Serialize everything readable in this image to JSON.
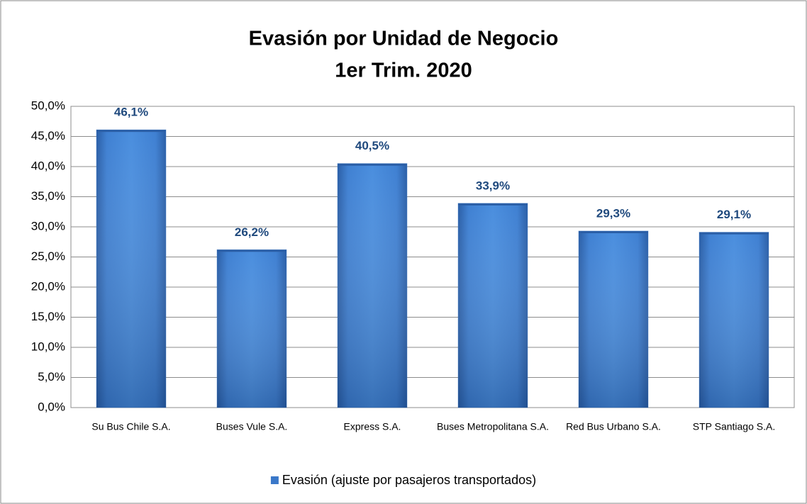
{
  "chart_data": {
    "type": "bar",
    "title": "Evasión por Unidad de Negocio",
    "subtitle": "1er Trim. 2020",
    "categories": [
      "Su Bus Chile S.A.",
      "Buses Vule S.A.",
      "Express S.A.",
      "Buses Metropolitana S.A.",
      "Red Bus Urbano S.A.",
      "STP Santiago S.A."
    ],
    "series": [
      {
        "name": "Evasión (ajuste por pasajeros transportados)",
        "color": "#3a78c9",
        "values": [
          46.1,
          26.2,
          40.5,
          33.9,
          29.3,
          29.1
        ],
        "value_labels": [
          "46,1%",
          "26,2%",
          "40,5%",
          "33,9%",
          "29,3%",
          "29,1%"
        ]
      }
    ],
    "ylim": [
      0,
      50
    ],
    "yticks": [
      {
        "value": 0,
        "label": "0,0%"
      },
      {
        "value": 5,
        "label": "5,0%"
      },
      {
        "value": 10,
        "label": "10,0%"
      },
      {
        "value": 15,
        "label": "15,0%"
      },
      {
        "value": 20,
        "label": "20,0%"
      },
      {
        "value": 25,
        "label": "25,0%"
      },
      {
        "value": 30,
        "label": "30,0%"
      },
      {
        "value": 35,
        "label": "35,0%"
      },
      {
        "value": 40,
        "label": "40,0%"
      },
      {
        "value": 45,
        "label": "45,0%"
      },
      {
        "value": 50,
        "label": "50,0%"
      }
    ],
    "grid": true,
    "legend": "bottom"
  }
}
